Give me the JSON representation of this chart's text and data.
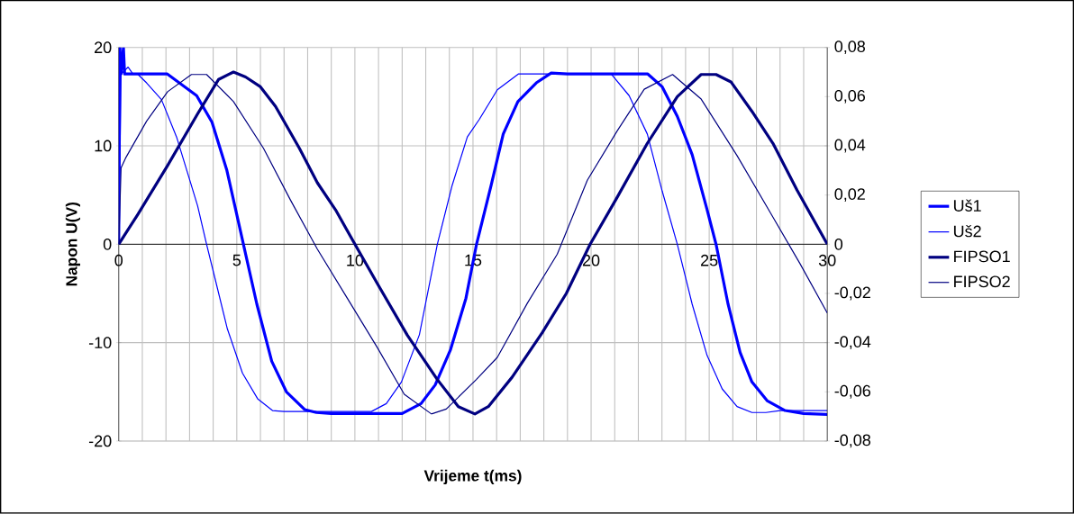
{
  "chart_data": {
    "type": "line",
    "xlabel": "Vrijeme t(ms)",
    "ylabel": "Napon U(V)",
    "xlim": [
      0,
      30
    ],
    "ylim": [
      -20,
      20
    ],
    "y2lim": [
      -0.08,
      0.08
    ],
    "xticks": [
      0,
      {
        "value": 1,
        "label": null
      },
      {
        "value": 2,
        "label": null
      },
      {
        "value": 3,
        "label": null
      },
      {
        "value": 4,
        "label": null
      },
      5,
      {
        "value": 6,
        "label": null
      },
      {
        "value": 7,
        "label": null
      },
      {
        "value": 8,
        "label": null
      },
      {
        "value": 9,
        "label": null
      },
      10,
      {
        "value": 11,
        "label": null
      },
      {
        "value": 12,
        "label": null
      },
      {
        "value": 13,
        "label": null
      },
      {
        "value": 14,
        "label": null
      },
      15,
      {
        "value": 16,
        "label": null
      },
      {
        "value": 17,
        "label": null
      },
      {
        "value": 18,
        "label": null
      },
      {
        "value": 19,
        "label": null
      },
      20,
      {
        "value": 21,
        "label": null
      },
      {
        "value": 22,
        "label": null
      },
      {
        "value": 23,
        "label": null
      },
      {
        "value": 24,
        "label": null
      },
      25,
      {
        "value": 26,
        "label": null
      },
      {
        "value": 27,
        "label": null
      },
      {
        "value": 28,
        "label": null
      },
      {
        "value": 29,
        "label": null
      },
      30
    ],
    "yticks": [
      -20,
      -10,
      0,
      10,
      20
    ],
    "y2ticks": [
      {
        "value": -0.08,
        "label": "-0,08"
      },
      {
        "value": -0.06,
        "label": "-0,06"
      },
      {
        "value": -0.04,
        "label": "-0,04"
      },
      {
        "value": -0.02,
        "label": "-0,02"
      },
      0,
      {
        "value": 0.02,
        "label": "0,02"
      },
      {
        "value": 0.04,
        "label": "0,04"
      },
      {
        "value": 0.06,
        "label": "0,06"
      },
      {
        "value": 0.08,
        "label": "0,08"
      }
    ],
    "grid": true,
    "legend": "right",
    "series": [
      {
        "name": "Uš1",
        "color": "#0000ff",
        "x": [
          0,
          0.05,
          0.1,
          0.2,
          0.25,
          1,
          2.06,
          3.3,
          3.95,
          4.58,
          5.28,
          5.85,
          6.48,
          7.1,
          7.87,
          8.37,
          9,
          10,
          11,
          12,
          12.8,
          13.4,
          14.05,
          14.7,
          15.15,
          15.77,
          16.28,
          16.9,
          17.68,
          18.31,
          19,
          20,
          21,
          22.4,
          23.01,
          23.65,
          24.28,
          24.9,
          25.29,
          25.8,
          26.31,
          26.81,
          27.45,
          28.21,
          29,
          30
        ],
        "values": [
          0,
          20,
          17.3,
          20,
          17.3,
          17.3,
          17.3,
          15.1,
          12.4,
          7.5,
          0,
          -6.1,
          -11.9,
          -15,
          -16.8,
          -17.1,
          -17.2,
          -17.2,
          -17.2,
          -17.2,
          -16.2,
          -14.3,
          -10.7,
          -5.5,
          0,
          6,
          11.2,
          14.5,
          16.4,
          17.4,
          17.3,
          17.3,
          17.3,
          17.3,
          16,
          13,
          9.1,
          3.6,
          0,
          -6.1,
          -11,
          -14,
          -15.9,
          -16.9,
          -17.2,
          -17.3
        ]
      },
      {
        "name": "Uš2",
        "color": "#0000ff",
        "x": [
          0,
          0.1,
          0.4,
          0.6,
          0.8,
          1.18,
          1.81,
          2.45,
          2.96,
          3.34,
          3.72,
          4.1,
          4.6,
          5.24,
          5.88,
          6.51,
          7,
          8,
          9,
          10,
          10.7,
          11.33,
          11.97,
          12.73,
          13.49,
          14.12,
          14.76,
          15.27,
          16.03,
          16.92,
          18,
          19,
          20,
          20.85,
          21.61,
          22.38,
          23.01,
          23.65,
          24.28,
          24.91,
          25.55,
          26.18,
          26.81,
          27.4,
          28,
          29,
          30
        ],
        "values": [
          0,
          17.3,
          18,
          17.3,
          17.3,
          16.4,
          14.7,
          10.9,
          6.9,
          3.9,
          0,
          -3.7,
          -8.6,
          -13.1,
          -15.7,
          -16.9,
          -17,
          -17,
          -17,
          -17,
          -17,
          -16.2,
          -14,
          -9.2,
          0,
          6,
          10.9,
          12.7,
          15.7,
          17.3,
          17.3,
          17.3,
          17.3,
          17.3,
          15.1,
          11.2,
          5.4,
          0,
          -6.1,
          -11.3,
          -14.7,
          -16.5,
          -17.1,
          -17.1,
          -16.9,
          -16.9,
          -16.9
        ]
      },
      {
        "name": "FIPSO1",
        "color": "#000080",
        "axis": "y2",
        "x": [
          0,
          0.8,
          2.07,
          3.34,
          4.23,
          4.86,
          5.37,
          6,
          6.64,
          7.65,
          8.41,
          9.18,
          10,
          10.95,
          12.22,
          13.49,
          14.38,
          15.08,
          15.65,
          16.66,
          17.93,
          18.95,
          19.96,
          21.1,
          22.38,
          23.65,
          24.66,
          25.29,
          25.92,
          26.81,
          27.7,
          28.72,
          30
        ],
        "values": [
          0,
          0.012,
          0.032,
          0.053,
          0.067,
          0.07,
          0.068,
          0.064,
          0.056,
          0.039,
          0.025,
          0.014,
          0,
          -0.016,
          -0.037,
          -0.055,
          -0.066,
          -0.069,
          -0.066,
          -0.054,
          -0.036,
          -0.02,
          0,
          0.019,
          0.041,
          0.06,
          0.069,
          0.069,
          0.066,
          0.054,
          0.041,
          0.022,
          0
        ]
      },
      {
        "name": "FIPSO2",
        "color": "#000080",
        "axis": "y2",
        "x": [
          0,
          0.1,
          0.29,
          1.18,
          2.07,
          3.08,
          3.72,
          4.86,
          6.13,
          7.27,
          8.41,
          9.68,
          10.95,
          12.09,
          13.24,
          13.87,
          15.14,
          16.03,
          17.3,
          18.57,
          19.84,
          21.1,
          22.25,
          23.45,
          24.66,
          26.18,
          27.7,
          28.85,
          30
        ],
        "values": [
          0,
          0.031,
          0.035,
          0.05,
          0.062,
          0.069,
          0.069,
          0.058,
          0.039,
          0.018,
          -0.002,
          -0.022,
          -0.042,
          -0.061,
          -0.069,
          -0.067,
          -0.055,
          -0.046,
          -0.024,
          -0.004,
          0.026,
          0.046,
          0.063,
          0.069,
          0.059,
          0.036,
          0.011,
          -0.008,
          -0.028
        ]
      }
    ]
  }
}
